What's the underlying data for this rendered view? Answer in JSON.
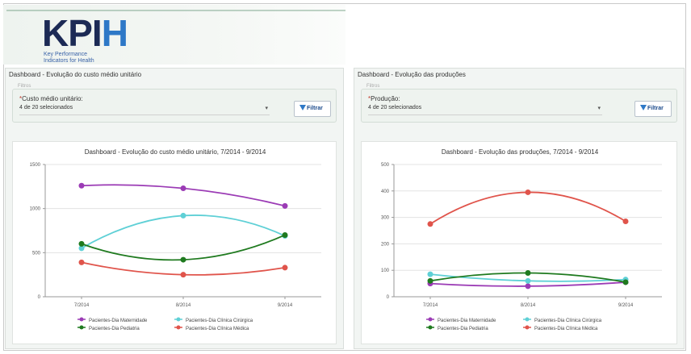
{
  "logo": {
    "main": "KPI",
    "accent": "H",
    "subtitle_line1": "Key Performance",
    "subtitle_line2": "Indicators for Health"
  },
  "left": {
    "header": "Dashboard - Evolução do custo médio unitário",
    "filter_legend": "Filtros",
    "filter_label": "Custo médio unitário:",
    "filter_required": "*",
    "select_value": "4 de 20 selecionados",
    "select_arrow": "▾",
    "button_label": "Filtrar",
    "chart_data": {
      "type": "line",
      "title": "Dashboard - Evolução do custo médio unitário, 7/2014 - 9/2014",
      "categories": [
        "7/2014",
        "8/2014",
        "9/2014"
      ],
      "ylim": [
        0,
        1500
      ],
      "yticks": [
        "0",
        "500",
        "1000",
        "1500"
      ],
      "series": [
        {
          "name": "Pacientes-Dia Maternidade",
          "color": "#9b3bb5",
          "values": [
            1260,
            1230,
            1030
          ]
        },
        {
          "name": "Pacientes-Dia Clínica Cirúrgica",
          "color": "#5fd0d6",
          "values": [
            550,
            920,
            690
          ]
        },
        {
          "name": "Pacientes-Dia Pediatria",
          "color": "#1f7a1f",
          "values": [
            600,
            420,
            700
          ]
        },
        {
          "name": "Pacientes-Dia Clínica Médica",
          "color": "#e0544b",
          "values": [
            390,
            250,
            330
          ]
        }
      ],
      "legend": "bottom"
    }
  },
  "right": {
    "header": "Dashboard - Evolução das produções",
    "filter_legend": "Filtros",
    "filter_label": "Produção:",
    "filter_required": "*",
    "select_value": "4 de 20 selecionados",
    "select_arrow": "▾",
    "button_label": "Filtrar",
    "chart_data": {
      "type": "line",
      "title": "Dashboard - Evolução das produções, 7/2014 - 9/2014",
      "categories": [
        "7/2014",
        "8/2014",
        "9/2014"
      ],
      "ylim": [
        0,
        500
      ],
      "yticks": [
        "0",
        "100",
        "200",
        "300",
        "400",
        "500"
      ],
      "series": [
        {
          "name": "Pacientes-Dia Maternidade",
          "color": "#9b3bb5",
          "values": [
            50,
            40,
            55
          ]
        },
        {
          "name": "Pacientes-Dia Clínica Cirúrgica",
          "color": "#5fd0d6",
          "values": [
            85,
            60,
            65
          ]
        },
        {
          "name": "Pacientes-Dia Pediatria",
          "color": "#1f7a1f",
          "values": [
            60,
            90,
            55
          ]
        },
        {
          "name": "Pacientes-Dia Clínica Médica",
          "color": "#e0544b",
          "values": [
            275,
            395,
            285
          ]
        }
      ],
      "legend": "bottom"
    }
  }
}
